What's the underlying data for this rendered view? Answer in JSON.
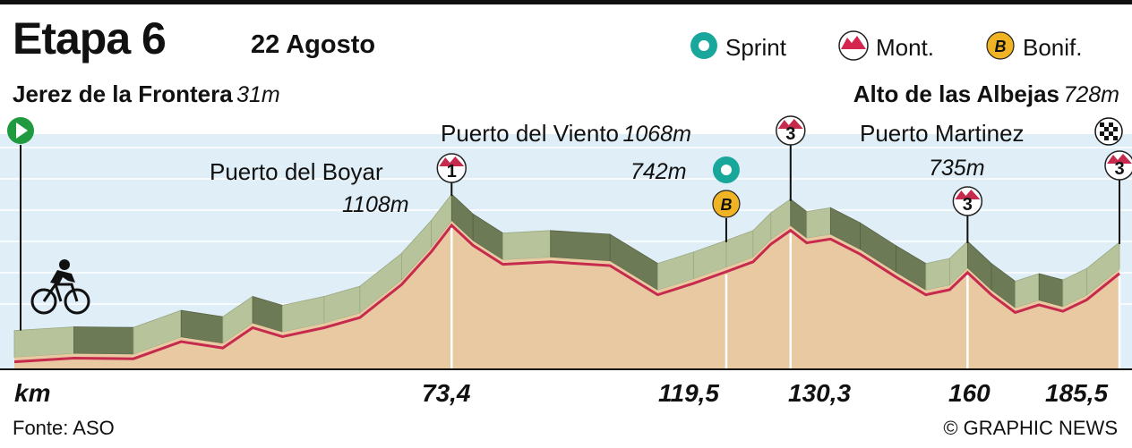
{
  "header": {
    "title": "Etapa 6",
    "date": "22 Agosto"
  },
  "legend": [
    {
      "icon": "sprint-icon",
      "label": "Sprint",
      "color": "#1aa79b"
    },
    {
      "icon": "mountain-icon",
      "label": "Mont.",
      "color": "#d5264f"
    },
    {
      "icon": "bonus-icon",
      "label": "Bonif.",
      "color": "#f0b323"
    }
  ],
  "start": {
    "name": "Jerez de la Frontera",
    "alt": "31m"
  },
  "finish": {
    "name": "Alto de las Albejas",
    "alt": "728m"
  },
  "points": [
    {
      "name": "Puerto del Boyar",
      "alt": "1108m",
      "km": "73,4",
      "marker": "1",
      "type": "mountain"
    },
    {
      "name": "",
      "alt": "742m",
      "km": "119,5",
      "marker": "B",
      "type": "sprint+bonus"
    },
    {
      "name": "Puerto del Viento",
      "alt": "1068m",
      "km": "130,3",
      "marker": "3",
      "type": "mountain"
    },
    {
      "name": "Puerto Martinez",
      "alt": "735m",
      "km": "160",
      "marker": "3",
      "type": "mountain"
    },
    {
      "name": "",
      "alt": "",
      "km": "185,5",
      "marker": "3",
      "type": "mountain"
    }
  ],
  "axis": {
    "unit": "km"
  },
  "source": "Fonte: ASO",
  "credit": "© GRAPHIC NEWS",
  "colors": {
    "ground": "#e8c9a2",
    "slope_light": "#b7c39a",
    "slope_dark": "#6d7a56",
    "profile_line": "#c62a4d",
    "sky": "#dfeef7",
    "start_green": "#1f9a3f"
  },
  "chart_data": {
    "type": "area",
    "xlabel": "km",
    "ylabel": "",
    "x": [
      0,
      10,
      20,
      28,
      35,
      40,
      45,
      52,
      58,
      65,
      70,
      73.4,
      77,
      82,
      90,
      100,
      108,
      114,
      119.5,
      124,
      127,
      130.3,
      133,
      137,
      142,
      148,
      153,
      157,
      160,
      164,
      168,
      172,
      176,
      180,
      185.5
    ],
    "series": [
      {
        "name": "",
        "values": [
          31,
          60,
          55,
          190,
          140,
          300,
          230,
          300,
          380,
          640,
          900,
          1108,
          950,
          800,
          820,
          790,
          560,
          650,
          742,
          820,
          960,
          1068,
          970,
          1000,
          880,
          700,
          560,
          600,
          735,
          560,
          420,
          480,
          430,
          520,
          728
        ]
      }
    ],
    "ylim": [
      0,
      1500
    ],
    "xlim": [
      0,
      185.5
    ],
    "grid": true
  }
}
